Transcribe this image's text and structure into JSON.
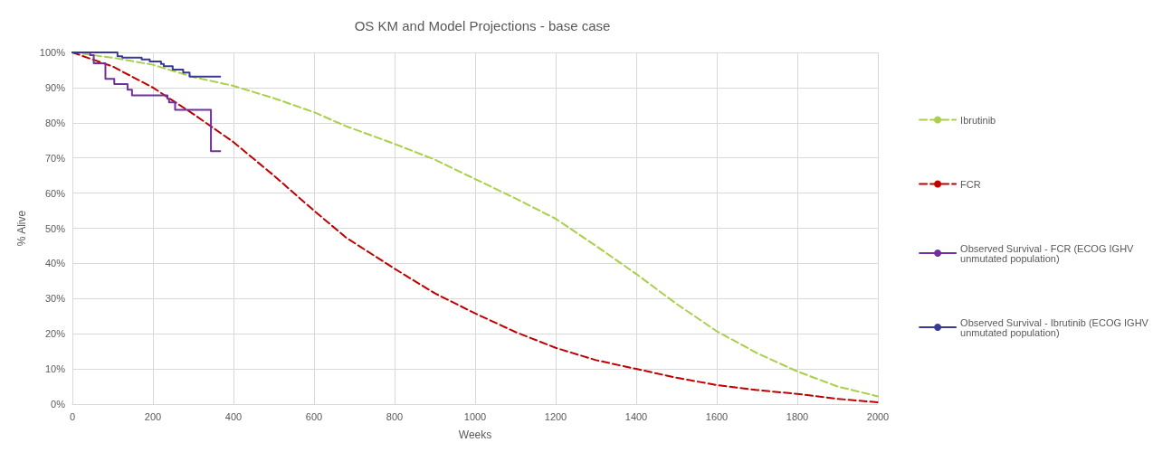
{
  "chart_data": {
    "type": "line",
    "title": "OS KM and Model Projections - base case",
    "xlabel": "Weeks",
    "ylabel": "% Alive",
    "xlim": [
      0,
      2000
    ],
    "xticks": [
      0,
      200,
      400,
      600,
      800,
      1000,
      1200,
      1400,
      1600,
      1800,
      2000
    ],
    "ylim": [
      0,
      100
    ],
    "yticks": [
      {
        "value": 0,
        "label": "0%"
      },
      {
        "value": 10,
        "label": "10%"
      },
      {
        "value": 20,
        "label": "20%"
      },
      {
        "value": 30,
        "label": "30%"
      },
      {
        "value": 40,
        "label": "40%"
      },
      {
        "value": 50,
        "label": "50%"
      },
      {
        "value": 60,
        "label": "60%"
      },
      {
        "value": 70,
        "label": "70%"
      },
      {
        "value": 80,
        "label": "80%"
      },
      {
        "value": 90,
        "label": "90%"
      },
      {
        "value": 100,
        "label": "100%"
      }
    ],
    "grid": true,
    "legend": "right",
    "marker": "none",
    "series": [
      {
        "name": "Ibrutinib",
        "color": "#a9cf4b",
        "line_style": "dashed",
        "x": [
          0,
          100,
          200,
          300,
          400,
          500,
          600,
          680,
          800,
          900,
          1000,
          1100,
          1200,
          1300,
          1400,
          1500,
          1600,
          1700,
          1800,
          1900,
          2000
        ],
        "values": [
          100,
          98.5,
          96.5,
          93,
          90.5,
          87,
          83,
          79,
          74,
          69.5,
          64,
          58.5,
          52.7,
          45,
          37,
          28.5,
          20.7,
          14.5,
          9.3,
          5,
          2.2
        ]
      },
      {
        "name": "FCR",
        "color": "#c00000",
        "line_style": "dashed",
        "x": [
          0,
          100,
          200,
          300,
          400,
          500,
          600,
          680,
          800,
          900,
          1000,
          1100,
          1200,
          1300,
          1400,
          1500,
          1600,
          1700,
          1800,
          1900,
          2000
        ],
        "values": [
          100,
          96,
          90,
          82.5,
          74.5,
          65,
          55,
          47.3,
          38.5,
          31.5,
          25.8,
          20.5,
          16,
          12.5,
          10,
          7.5,
          5.4,
          4,
          2.9,
          1.5,
          0.5
        ]
      },
      {
        "name": "Observed Survival - FCR (ECOG IGHV unmutated population)",
        "type": "step",
        "color": "#7030a0",
        "line_style": "solid",
        "x": [
          0,
          44,
          53,
          82,
          104,
          137,
          148,
          236,
          240,
          255,
          344,
          367
        ],
        "values": [
          100,
          99.2,
          96.9,
          92.5,
          91,
          89.4,
          87.8,
          86.8,
          85.8,
          83.7,
          71.9,
          71.9
        ]
      },
      {
        "name": "Observed Survival - Ibrutinib (ECOG IGHV unmutated population)",
        "type": "step",
        "color": "#3a3a96",
        "line_style": "solid",
        "x": [
          0,
          112,
          124,
          172,
          192,
          220,
          227,
          249,
          275,
          291,
          367
        ],
        "values": [
          100,
          98.9,
          98.5,
          98,
          97.4,
          96.7,
          96.1,
          95.1,
          94.3,
          93.1,
          93.1
        ]
      }
    ]
  }
}
